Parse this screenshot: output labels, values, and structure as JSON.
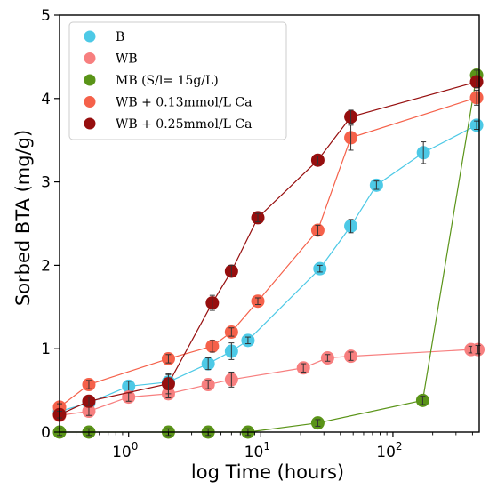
{
  "chart_data": {
    "type": "line",
    "xlabel": "log Time (hours)",
    "ylabel": "Sorbed BTA (mg/g)",
    "xscale": "log",
    "xlim": [
      0.3,
      450
    ],
    "ylim": [
      0,
      5
    ],
    "xticks": [
      {
        "value": 1,
        "base": "10",
        "exp": "0"
      },
      {
        "value": 10,
        "base": "10",
        "exp": "1"
      },
      {
        "value": 100,
        "base": "10",
        "exp": "2"
      }
    ],
    "yticks": [
      {
        "value": 0,
        "label": "0"
      },
      {
        "value": 1,
        "label": "1"
      },
      {
        "value": 2,
        "label": "2"
      },
      {
        "value": 3,
        "label": "3"
      },
      {
        "value": 4,
        "label": "4"
      },
      {
        "value": 5,
        "label": "5"
      }
    ],
    "legend_position": "upper-left",
    "grid": false,
    "series": [
      {
        "name": "B",
        "color": "#4dc9e6",
        "x": [
          0.3,
          0.5,
          1,
          2,
          4,
          6,
          8,
          28,
          48,
          75,
          170,
          430
        ],
        "y": [
          0.25,
          0.35,
          0.55,
          0.6,
          0.82,
          0.97,
          1.1,
          1.96,
          2.47,
          2.96,
          3.35,
          3.68
        ],
        "err": [
          0.04,
          0.04,
          0.06,
          0.09,
          0.07,
          0.1,
          0.04,
          0.04,
          0.08,
          0.05,
          0.13,
          0.05
        ]
      },
      {
        "name": "WB",
        "color": "#f77f7f",
        "x": [
          0.3,
          0.5,
          1,
          2,
          4,
          6,
          21,
          32,
          48,
          390,
          440
        ],
        "y": [
          0.2,
          0.25,
          0.42,
          0.46,
          0.57,
          0.63,
          0.77,
          0.89,
          0.91,
          0.99,
          0.99
        ],
        "err": [
          0.04,
          0.05,
          0.05,
          0.05,
          0.05,
          0.09,
          0.05,
          0.04,
          0.05,
          0.04,
          0.05
        ]
      },
      {
        "name": "MB (S/l= 15g/L)",
        "color": "#5a9418",
        "x": [
          0.3,
          0.5,
          2,
          4,
          8,
          27,
          168,
          430
        ],
        "y": [
          0,
          0,
          0,
          0,
          0,
          0.11,
          0.38,
          4.28
        ],
        "err": [
          0.04,
          0.04,
          0.04,
          0.04,
          0.04,
          0.04,
          0.05,
          0.06
        ]
      },
      {
        "name": "WB + 0.13mmol/L Ca",
        "color": "#f5614a",
        "x": [
          0.3,
          0.5,
          2,
          4.3,
          6,
          9.5,
          27,
          48,
          430
        ],
        "y": [
          0.3,
          0.57,
          0.88,
          1.03,
          1.2,
          1.57,
          2.42,
          3.53,
          4.01
        ],
        "err": [
          0.04,
          0.05,
          0.05,
          0.07,
          0.05,
          0.04,
          0.06,
          0.15,
          0.09
        ]
      },
      {
        "name": "WB + 0.25mmol/L Ca",
        "color": "#960e0e",
        "x": [
          0.3,
          0.5,
          2,
          4.3,
          6,
          9.5,
          27,
          48,
          430
        ],
        "y": [
          0.21,
          0.37,
          0.58,
          1.55,
          1.93,
          2.57,
          3.26,
          3.78,
          4.2
        ],
        "err": [
          0.04,
          0.05,
          0.12,
          0.09,
          0.07,
          0.05,
          0.05,
          0.08,
          0.07
        ]
      }
    ]
  }
}
